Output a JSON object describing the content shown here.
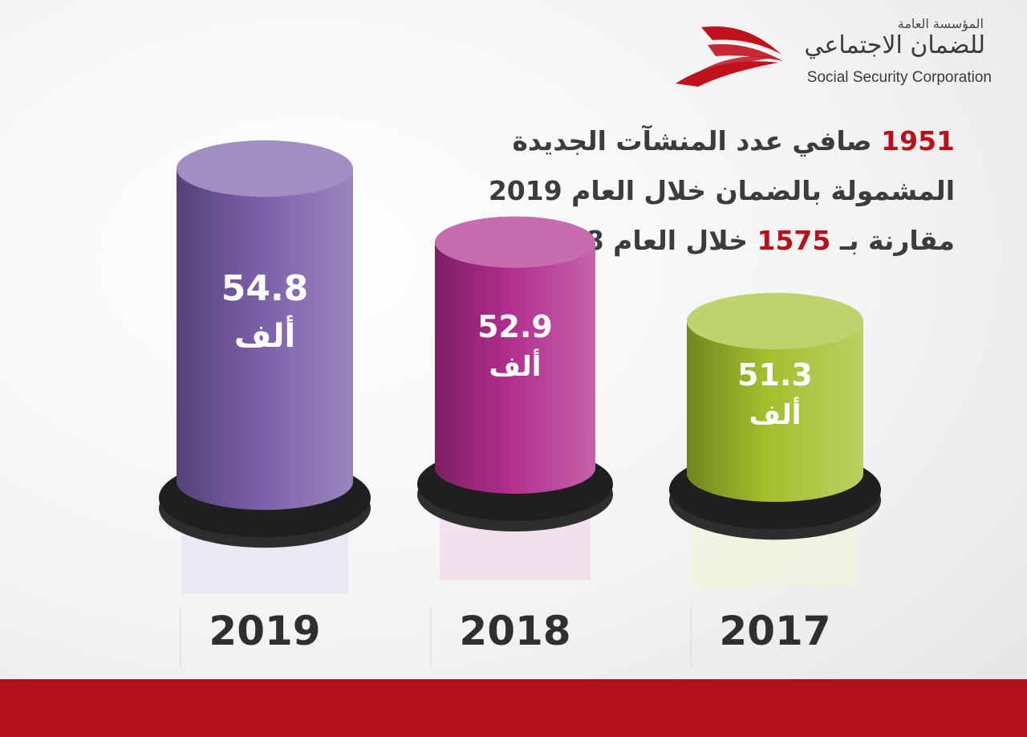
{
  "logo": {
    "arabic_small": "المؤسسة العامة",
    "arabic_big": "للضمان الاجتماعي",
    "english": "Social Security Corporation",
    "mark_color": "#c0121d"
  },
  "headline": {
    "line1_number": "1951",
    "line1_text": "صافي عدد المنشآت الجديدة",
    "line2_text": "المشمولة بالضمان خلال العام 2019",
    "line3_text_a": "مقارنة بـ",
    "line3_number": "1575",
    "line3_text_b": "خلال العام 2018"
  },
  "chart_data": {
    "type": "bar",
    "categories": [
      "2019",
      "2018",
      "2017"
    ],
    "values": [
      54.8,
      52.9,
      51.3
    ],
    "value_labels": [
      "54.8",
      "52.9",
      "51.3"
    ],
    "unit_label": "ألف",
    "colors": [
      "#7a5ea8",
      "#b12d8d",
      "#a2c02d"
    ],
    "legend": "none",
    "grid": false
  },
  "colors": {
    "accent_red": "#b5121b",
    "footer_red": "#b3121c",
    "text_dark": "#3c3c3c"
  }
}
